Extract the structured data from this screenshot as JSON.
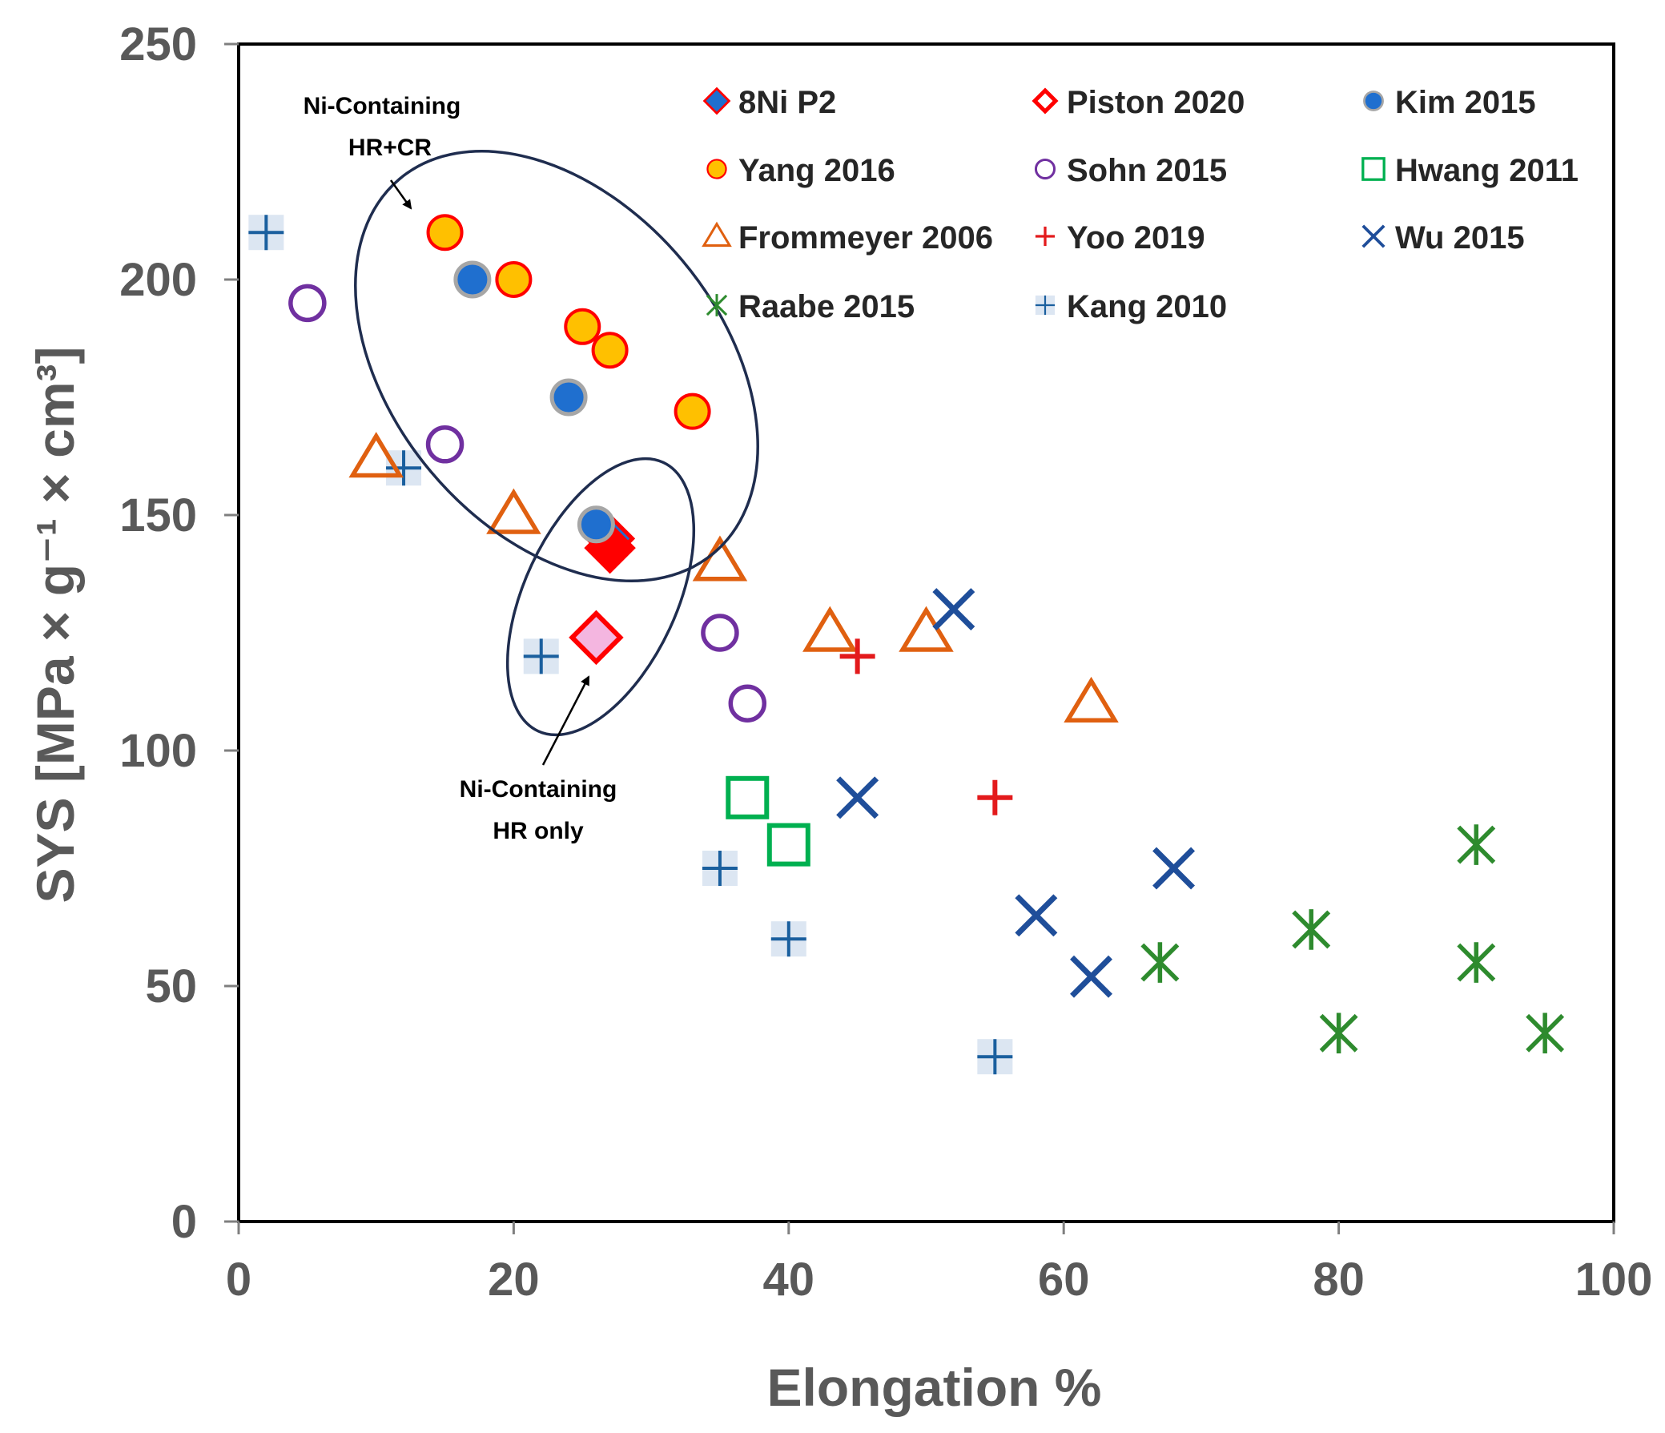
{
  "chart_data": {
    "type": "scatter",
    "title": "",
    "xlabel": "Elongation %",
    "ylabel": "SYS [MPa × g⁻¹ × cm³]",
    "xlim": [
      0,
      100
    ],
    "ylim": [
      0,
      250
    ],
    "x_ticks": [
      0,
      20,
      40,
      60,
      80,
      100
    ],
    "y_ticks": [
      0,
      50,
      100,
      150,
      200,
      250
    ],
    "x_tick_labels": [
      "0",
      "20",
      "40",
      "60",
      "80",
      "100"
    ],
    "y_tick_labels": [
      "0",
      "50",
      "100",
      "150",
      "200",
      "250"
    ],
    "grid": false,
    "legend_position": "top-right",
    "series": [
      {
        "name": "8Ni P2",
        "marker": "diamond-blue",
        "points": [
          [
            27,
            145
          ]
        ]
      },
      {
        "name": "Piston 2020",
        "marker": "diamond-red",
        "points": [
          [
            27,
            143
          ],
          [
            26,
            124
          ]
        ]
      },
      {
        "name": "Kim 2015",
        "marker": "circle-blue",
        "points": [
          [
            17,
            200
          ],
          [
            24,
            175
          ],
          [
            26,
            148
          ]
        ]
      },
      {
        "name": "Yang 2016",
        "marker": "circle-yellow",
        "points": [
          [
            15,
            210
          ],
          [
            20,
            200
          ],
          [
            25,
            190
          ],
          [
            27,
            185
          ],
          [
            33,
            172
          ]
        ]
      },
      {
        "name": "Sohn 2015",
        "marker": "circle-purple",
        "points": [
          [
            5,
            195
          ],
          [
            15,
            165
          ],
          [
            35,
            125
          ],
          [
            37,
            110
          ]
        ]
      },
      {
        "name": "Hwang 2011",
        "marker": "square-green",
        "points": [
          [
            37,
            90
          ],
          [
            40,
            80
          ]
        ]
      },
      {
        "name": "Frommeyer 2006",
        "marker": "triangle-orange",
        "points": [
          [
            10,
            162
          ],
          [
            20,
            150
          ],
          [
            35,
            140
          ],
          [
            43,
            125
          ],
          [
            50,
            125
          ],
          [
            62,
            110
          ]
        ]
      },
      {
        "name": "Yoo 2019",
        "marker": "plus-red",
        "points": [
          [
            45,
            120
          ],
          [
            55,
            90
          ]
        ]
      },
      {
        "name": "Wu 2015",
        "marker": "x-blue",
        "points": [
          [
            52,
            130
          ],
          [
            45,
            90
          ],
          [
            68,
            75
          ],
          [
            58,
            65
          ],
          [
            62,
            52
          ]
        ]
      },
      {
        "name": "Raabe 2015",
        "marker": "star-green",
        "points": [
          [
            67,
            55
          ],
          [
            78,
            62
          ],
          [
            80,
            40
          ],
          [
            90,
            80
          ],
          [
            90,
            55
          ],
          [
            95,
            40
          ]
        ]
      },
      {
        "name": "Kang 2010",
        "marker": "plus-blue-box",
        "points": [
          [
            2,
            210
          ],
          [
            12,
            160
          ],
          [
            22,
            120
          ],
          [
            35,
            75
          ],
          [
            40,
            60
          ],
          [
            55,
            35
          ]
        ]
      }
    ],
    "annotations": [
      {
        "name": "ellipse-hr-cr",
        "lines": [
          "Ni-Containing",
          "HR+CR"
        ]
      },
      {
        "name": "ellipse-hr-only",
        "lines": [
          "Ni-Containing",
          "HR only"
        ]
      }
    ],
    "colors": {
      "axis": "#000000",
      "tick_text": "#595959",
      "blue": "#1f6fcf",
      "red": "#ff0000",
      "yellow": "#ffc000",
      "purple": "#7030a0",
      "green": "#00b050",
      "orange": "#e06010",
      "darkred": "#e31a1c",
      "navy": "#1f4e9a",
      "dkgreen": "#2e8b2e",
      "kang": "#1a5f9e",
      "kang_box": "#dce6f2",
      "pink": "#f4b6e0",
      "ellipse": "#1f2d4f"
    }
  }
}
